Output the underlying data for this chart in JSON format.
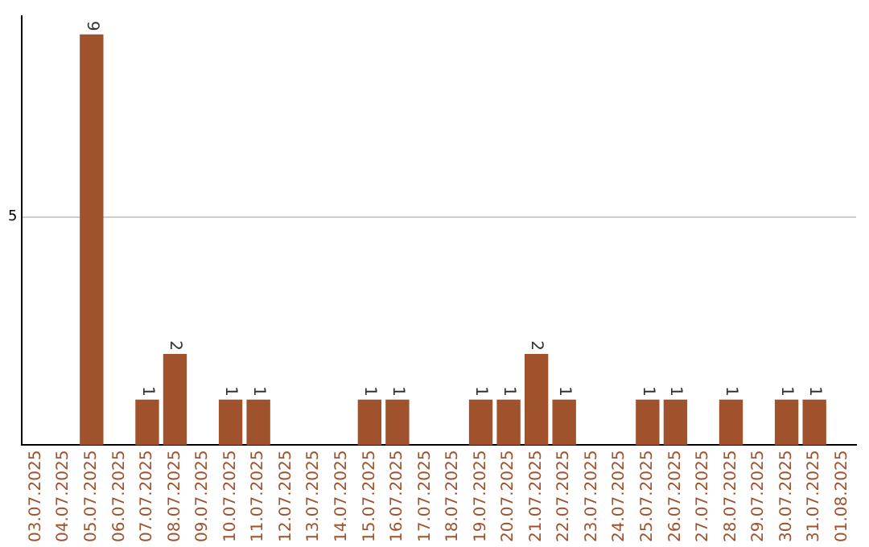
{
  "chart_data": {
    "type": "bar",
    "categories": [
      "03.07.2025",
      "04.07.2025",
      "05.07.2025",
      "06.07.2025",
      "07.07.2025",
      "08.07.2025",
      "09.07.2025",
      "10.07.2025",
      "11.07.2025",
      "12.07.2025",
      "13.07.2025",
      "14.07.2025",
      "15.07.2025",
      "16.07.2025",
      "17.07.2025",
      "18.07.2025",
      "19.07.2025",
      "20.07.2025",
      "21.07.2025",
      "22.07.2025",
      "23.07.2025",
      "24.07.2025",
      "25.07.2025",
      "26.07.2025",
      "27.07.2025",
      "28.07.2025",
      "29.07.2025",
      "30.07.2025",
      "31.07.2025",
      "01.08.2025"
    ],
    "values": [
      0,
      0,
      9,
      0,
      1,
      2,
      0,
      1,
      1,
      0,
      0,
      0,
      1,
      1,
      0,
      0,
      1,
      1,
      2,
      1,
      0,
      0,
      1,
      1,
      0,
      1,
      0,
      1,
      1,
      0
    ],
    "value_labels": [
      null,
      null,
      "9",
      null,
      "1",
      "2",
      null,
      "1",
      "1",
      null,
      null,
      null,
      "1",
      "1",
      null,
      null,
      "1",
      "1",
      "2",
      "1",
      null,
      null,
      "1",
      "1",
      null,
      "1",
      null,
      "1",
      "1",
      null
    ],
    "color": "#a0522d",
    "ylim": [
      0,
      9.4
    ],
    "yticks": [
      5
    ],
    "grid": "y",
    "legend": false
  }
}
